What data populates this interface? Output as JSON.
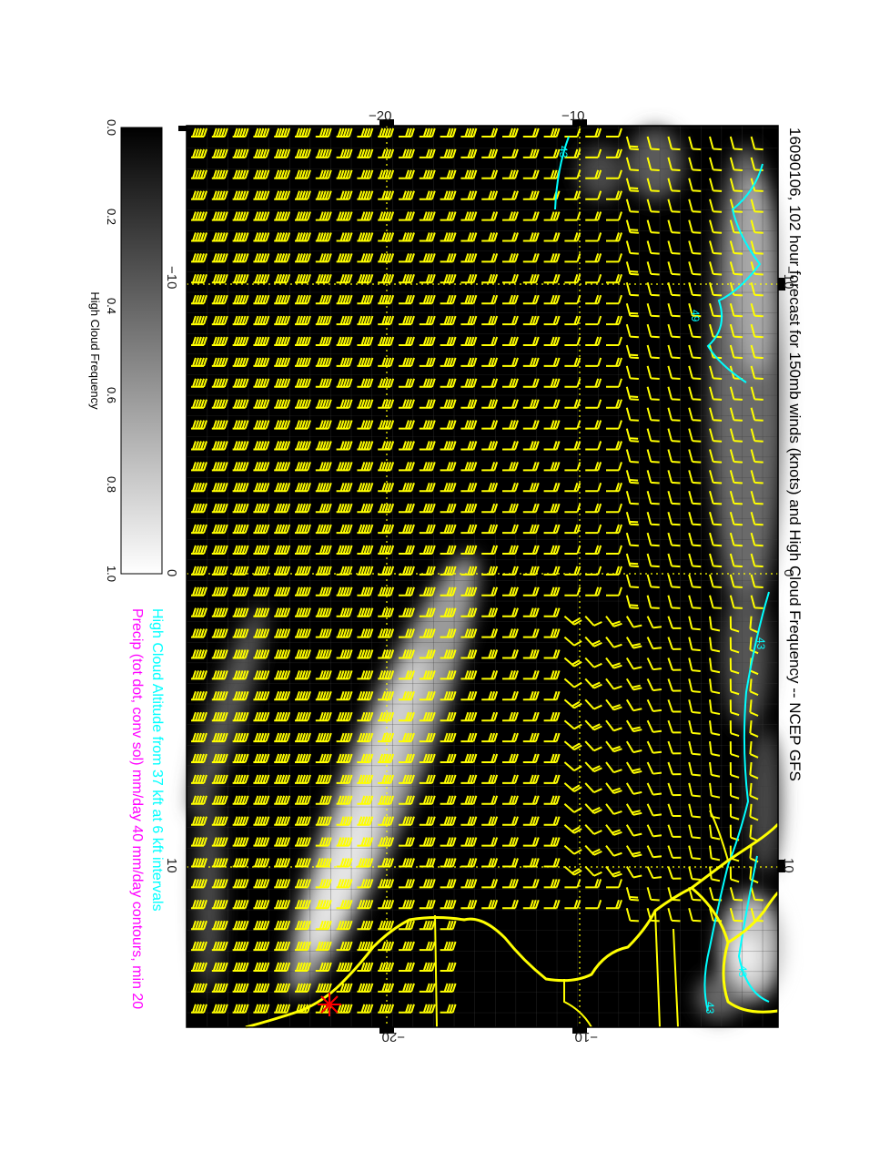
{
  "title": "16090106, 102 hour forecast for 150mb winds (knots) and High Cloud Frequency -- NCEP GFS",
  "subtitle_cloud": "High Cloud Altitude from 37 kft at 6 kft intervals",
  "subtitle_precip": "Precip (tot dot, conv sol) mm/day 40 mm/day contours, min 20",
  "colorbar": {
    "label": "High Cloud Frequency",
    "ticks": [
      "0.0",
      "0.2",
      "0.4",
      "0.6",
      "0.8",
      "1.0"
    ]
  },
  "axes": {
    "top_ticks": [
      "−20",
      "−10"
    ],
    "bottom_ticks": [
      "−20",
      "−10"
    ],
    "left_ticks": [
      "−10",
      "0",
      "10"
    ],
    "right_ticks": [
      "−10",
      "0",
      "10"
    ]
  },
  "contour_labels": [
    "43",
    "49",
    "43",
    "43",
    "43"
  ],
  "colors": {
    "barb": "#ffff00",
    "coast": "#ffff00",
    "cloud_contour": "#00ffff",
    "precip_text": "#ff00ff",
    "cloud_text": "#00ffff",
    "storm_marker": "#ff0000"
  }
}
